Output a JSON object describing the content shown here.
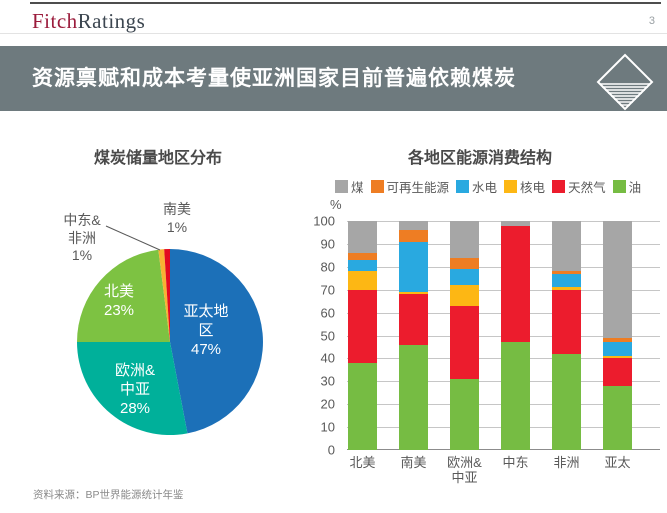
{
  "header": {
    "logo_fitch": "Fitch",
    "logo_ratings": "Ratings",
    "page_number": "3"
  },
  "title_bar": {
    "title": "资源禀赋和成本考量使亚洲国家目前普遍依赖煤炭",
    "bg_color": "#6e7a7e"
  },
  "footer": {
    "source": "资料来源：BP世界能源统计年鉴"
  },
  "chart_data": [
    {
      "type": "pie",
      "title": "煤炭储量地区分布",
      "start_angle_deg": -90,
      "direction": "clockwise",
      "slices": [
        {
          "name": "亚太地区",
          "value": 47,
          "color": "#1c70b8",
          "label": "亚太地\n区\n47%",
          "label_placement": "inside"
        },
        {
          "name": "欧洲&中亚",
          "value": 28,
          "color": "#00b09a",
          "label": "欧洲&\n中亚\n28%",
          "label_placement": "inside"
        },
        {
          "name": "北美",
          "value": 23,
          "color": "#7dc242",
          "label": "北美\n23%",
          "label_placement": "inside"
        },
        {
          "name": "中东&非洲",
          "value": 1,
          "color": "#f9b233",
          "label": "中东&\n非洲\n1%",
          "label_placement": "outside",
          "leader_line": true
        },
        {
          "name": "南美",
          "value": 1,
          "color": "#e30b20",
          "label": "南美\n1%",
          "label_placement": "outside"
        }
      ]
    },
    {
      "type": "bar",
      "stacked": true,
      "title": "各地区能源消费结构",
      "ylabel": "%",
      "ylim": [
        0,
        100
      ],
      "y_ticks": [
        0,
        10,
        20,
        30,
        40,
        50,
        60,
        70,
        80,
        90,
        100
      ],
      "grid": true,
      "legend_position": "top",
      "legend_order": [
        "煤",
        "可再生能源",
        "水电",
        "核电",
        "天然气",
        "油"
      ],
      "categories": [
        "北美",
        "南美",
        "欧洲&\n中亚",
        "中东",
        "非洲",
        "亚太"
      ],
      "series": [
        {
          "name": "油",
          "color": "#76bc43",
          "values": [
            38,
            46,
            31,
            47,
            42,
            28
          ]
        },
        {
          "name": "天然气",
          "color": "#ec1c2d",
          "values": [
            32,
            22,
            32,
            51,
            28,
            12
          ]
        },
        {
          "name": "核电",
          "color": "#fdb714",
          "values": [
            8,
            1,
            9,
            0,
            1,
            1
          ]
        },
        {
          "name": "水电",
          "color": "#29a9e0",
          "values": [
            5,
            22,
            7,
            0,
            6,
            6
          ]
        },
        {
          "name": "可再生能源",
          "color": "#ee7d23",
          "values": [
            3,
            5,
            5,
            0,
            1,
            2
          ]
        },
        {
          "name": "煤",
          "color": "#a6a6a6",
          "values": [
            14,
            4,
            16,
            2,
            22,
            51
          ]
        }
      ]
    }
  ]
}
